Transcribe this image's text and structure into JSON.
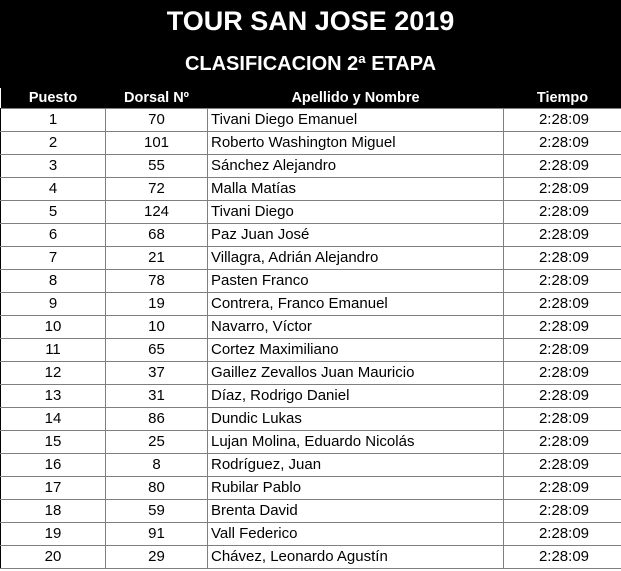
{
  "header": {
    "title": "TOUR SAN JOSE 2019",
    "subtitle": "CLASIFICACION 2ª ETAPA"
  },
  "table": {
    "columns": [
      "Puesto",
      "Dorsal Nº",
      "Apellido y Nombre",
      "Tiempo"
    ],
    "rows": [
      [
        "1",
        "70",
        "Tivani Diego Emanuel",
        "2:28:09"
      ],
      [
        "2",
        "101",
        "Roberto Washington Miguel",
        "2:28:09"
      ],
      [
        "3",
        "55",
        "Sánchez Alejandro",
        "2:28:09"
      ],
      [
        "4",
        "72",
        "Malla Matías",
        "2:28:09"
      ],
      [
        "5",
        "124",
        "Tivani Diego",
        "2:28:09"
      ],
      [
        "6",
        "68",
        "Paz Juan José",
        "2:28:09"
      ],
      [
        "7",
        "21",
        "Villagra, Adrián Alejandro",
        "2:28:09"
      ],
      [
        "8",
        "78",
        "Pasten Franco",
        "2:28:09"
      ],
      [
        "9",
        "19",
        "Contrera, Franco Emanuel",
        "2:28:09"
      ],
      [
        "10",
        "10",
        "Navarro, Víctor",
        "2:28:09"
      ],
      [
        "11",
        "65",
        "Cortez Maximiliano",
        "2:28:09"
      ],
      [
        "12",
        "37",
        "Gaillez Zevallos Juan Mauricio",
        "2:28:09"
      ],
      [
        "13",
        "31",
        "Díaz, Rodrigo Daniel",
        "2:28:09"
      ],
      [
        "14",
        "86",
        "Dundic Lukas",
        "2:28:09"
      ],
      [
        "15",
        "25",
        "Lujan Molina, Eduardo Nicolás",
        "2:28:09"
      ],
      [
        "16",
        "8",
        "Rodríguez, Juan",
        "2:28:09"
      ],
      [
        "17",
        "80",
        "Rubilar Pablo",
        "2:28:09"
      ],
      [
        "18",
        "59",
        "Brenta David",
        "2:28:09"
      ],
      [
        "19",
        "91",
        "Vall Federico",
        "2:28:09"
      ],
      [
        "20",
        "29",
        "Chávez, Leonardo Agustín",
        "2:28:09"
      ]
    ]
  }
}
